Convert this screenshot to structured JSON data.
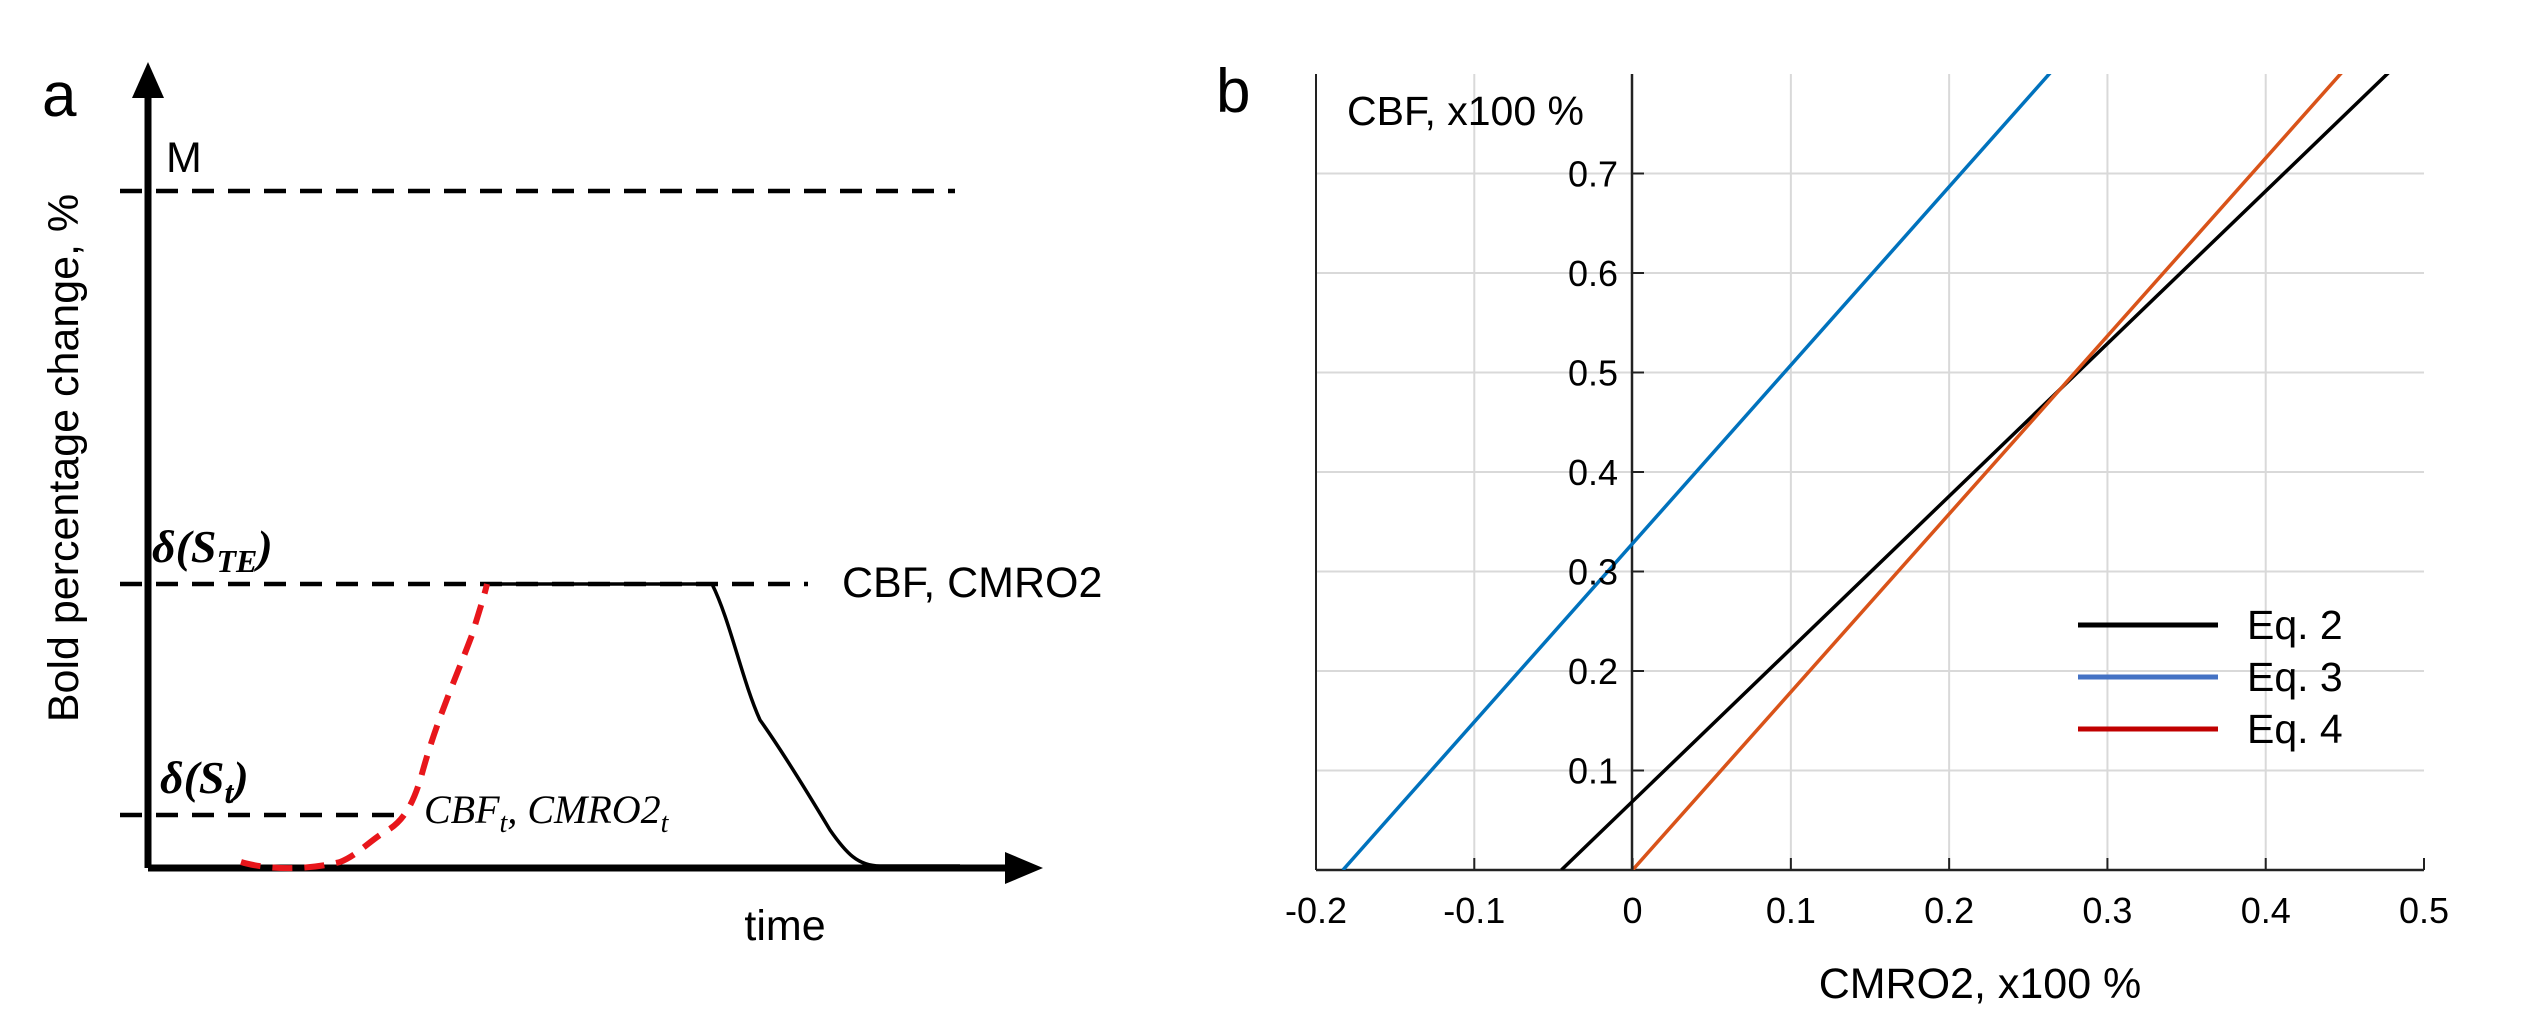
{
  "chart_data": [
    {
      "type": "line",
      "panel_label": "a",
      "title": "",
      "ylabel": "Bold percentage change, %",
      "xlabel": "time",
      "levels": {
        "M": "M",
        "S_TE": {
          "prefix": "δ",
          "paren_open": "(",
          "symbol": "S",
          "sub": "TE",
          "paren_close": ")"
        },
        "S_t": {
          "prefix": "δ",
          "paren_open": "(",
          "symbol": "S",
          "sub": "t",
          "paren_close": ")"
        }
      },
      "annotations": {
        "upper": "CBF, CMRO2",
        "lower": {
          "a": "CBF",
          "a_sub": "t",
          "sep": ", ",
          "b": "CMRO2",
          "b_sub": "t"
        }
      },
      "colors": {
        "axis": "#000000",
        "response": "#000000",
        "onset": "#e8161b"
      }
    },
    {
      "type": "line",
      "panel_label": "b",
      "title": "",
      "xlabel": "CMRO2, x100 %",
      "ylabel": "CBF, x100 %",
      "xlim": [
        -0.2,
        0.5
      ],
      "ylim": [
        0,
        0.8
      ],
      "grid": true,
      "legend_position": "bottom-right",
      "x_ticks": [
        "-0.2",
        "-0.1",
        "0",
        "0.1",
        "0.2",
        "0.3",
        "0.4",
        "0.5"
      ],
      "y_ticks": [
        "0.1",
        "0.2",
        "0.3",
        "0.4",
        "0.5",
        "0.6",
        "0.7"
      ],
      "series": [
        {
          "name": "Eq. 2",
          "color": "#000000",
          "legend_color": "#000000",
          "x": [
            -0.045,
            0.48
          ],
          "y": [
            0.0,
            0.805
          ]
        },
        {
          "name": "Eq. 3",
          "color": "#0072bd",
          "legend_color": "#4472c4",
          "x": [
            -0.183,
            0.266
          ],
          "y": [
            0.0,
            0.805
          ]
        },
        {
          "name": "Eq. 4",
          "color": "#d95319",
          "legend_color": "#c00000",
          "x": [
            0.0,
            0.45
          ],
          "y": [
            0.0,
            0.805
          ]
        }
      ]
    }
  ]
}
